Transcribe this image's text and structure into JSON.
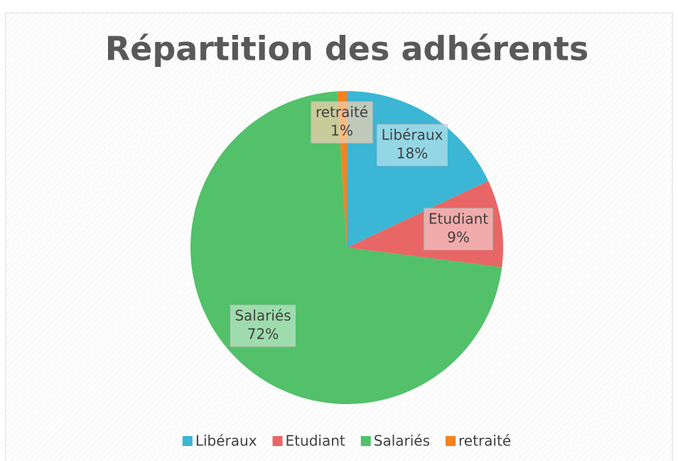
{
  "chart_data": {
    "type": "pie",
    "title": "Répartition des adhérents",
    "categories": [
      "Libéraux",
      "Etudiant",
      "Salariés",
      "retraité"
    ],
    "values": [
      18,
      9,
      72,
      1
    ],
    "value_labels": [
      "18%",
      "9%",
      "72%",
      "1%"
    ],
    "colors": [
      "#3bb6d5",
      "#e96666",
      "#52c16a",
      "#f5821f"
    ],
    "legend": "bottom"
  }
}
